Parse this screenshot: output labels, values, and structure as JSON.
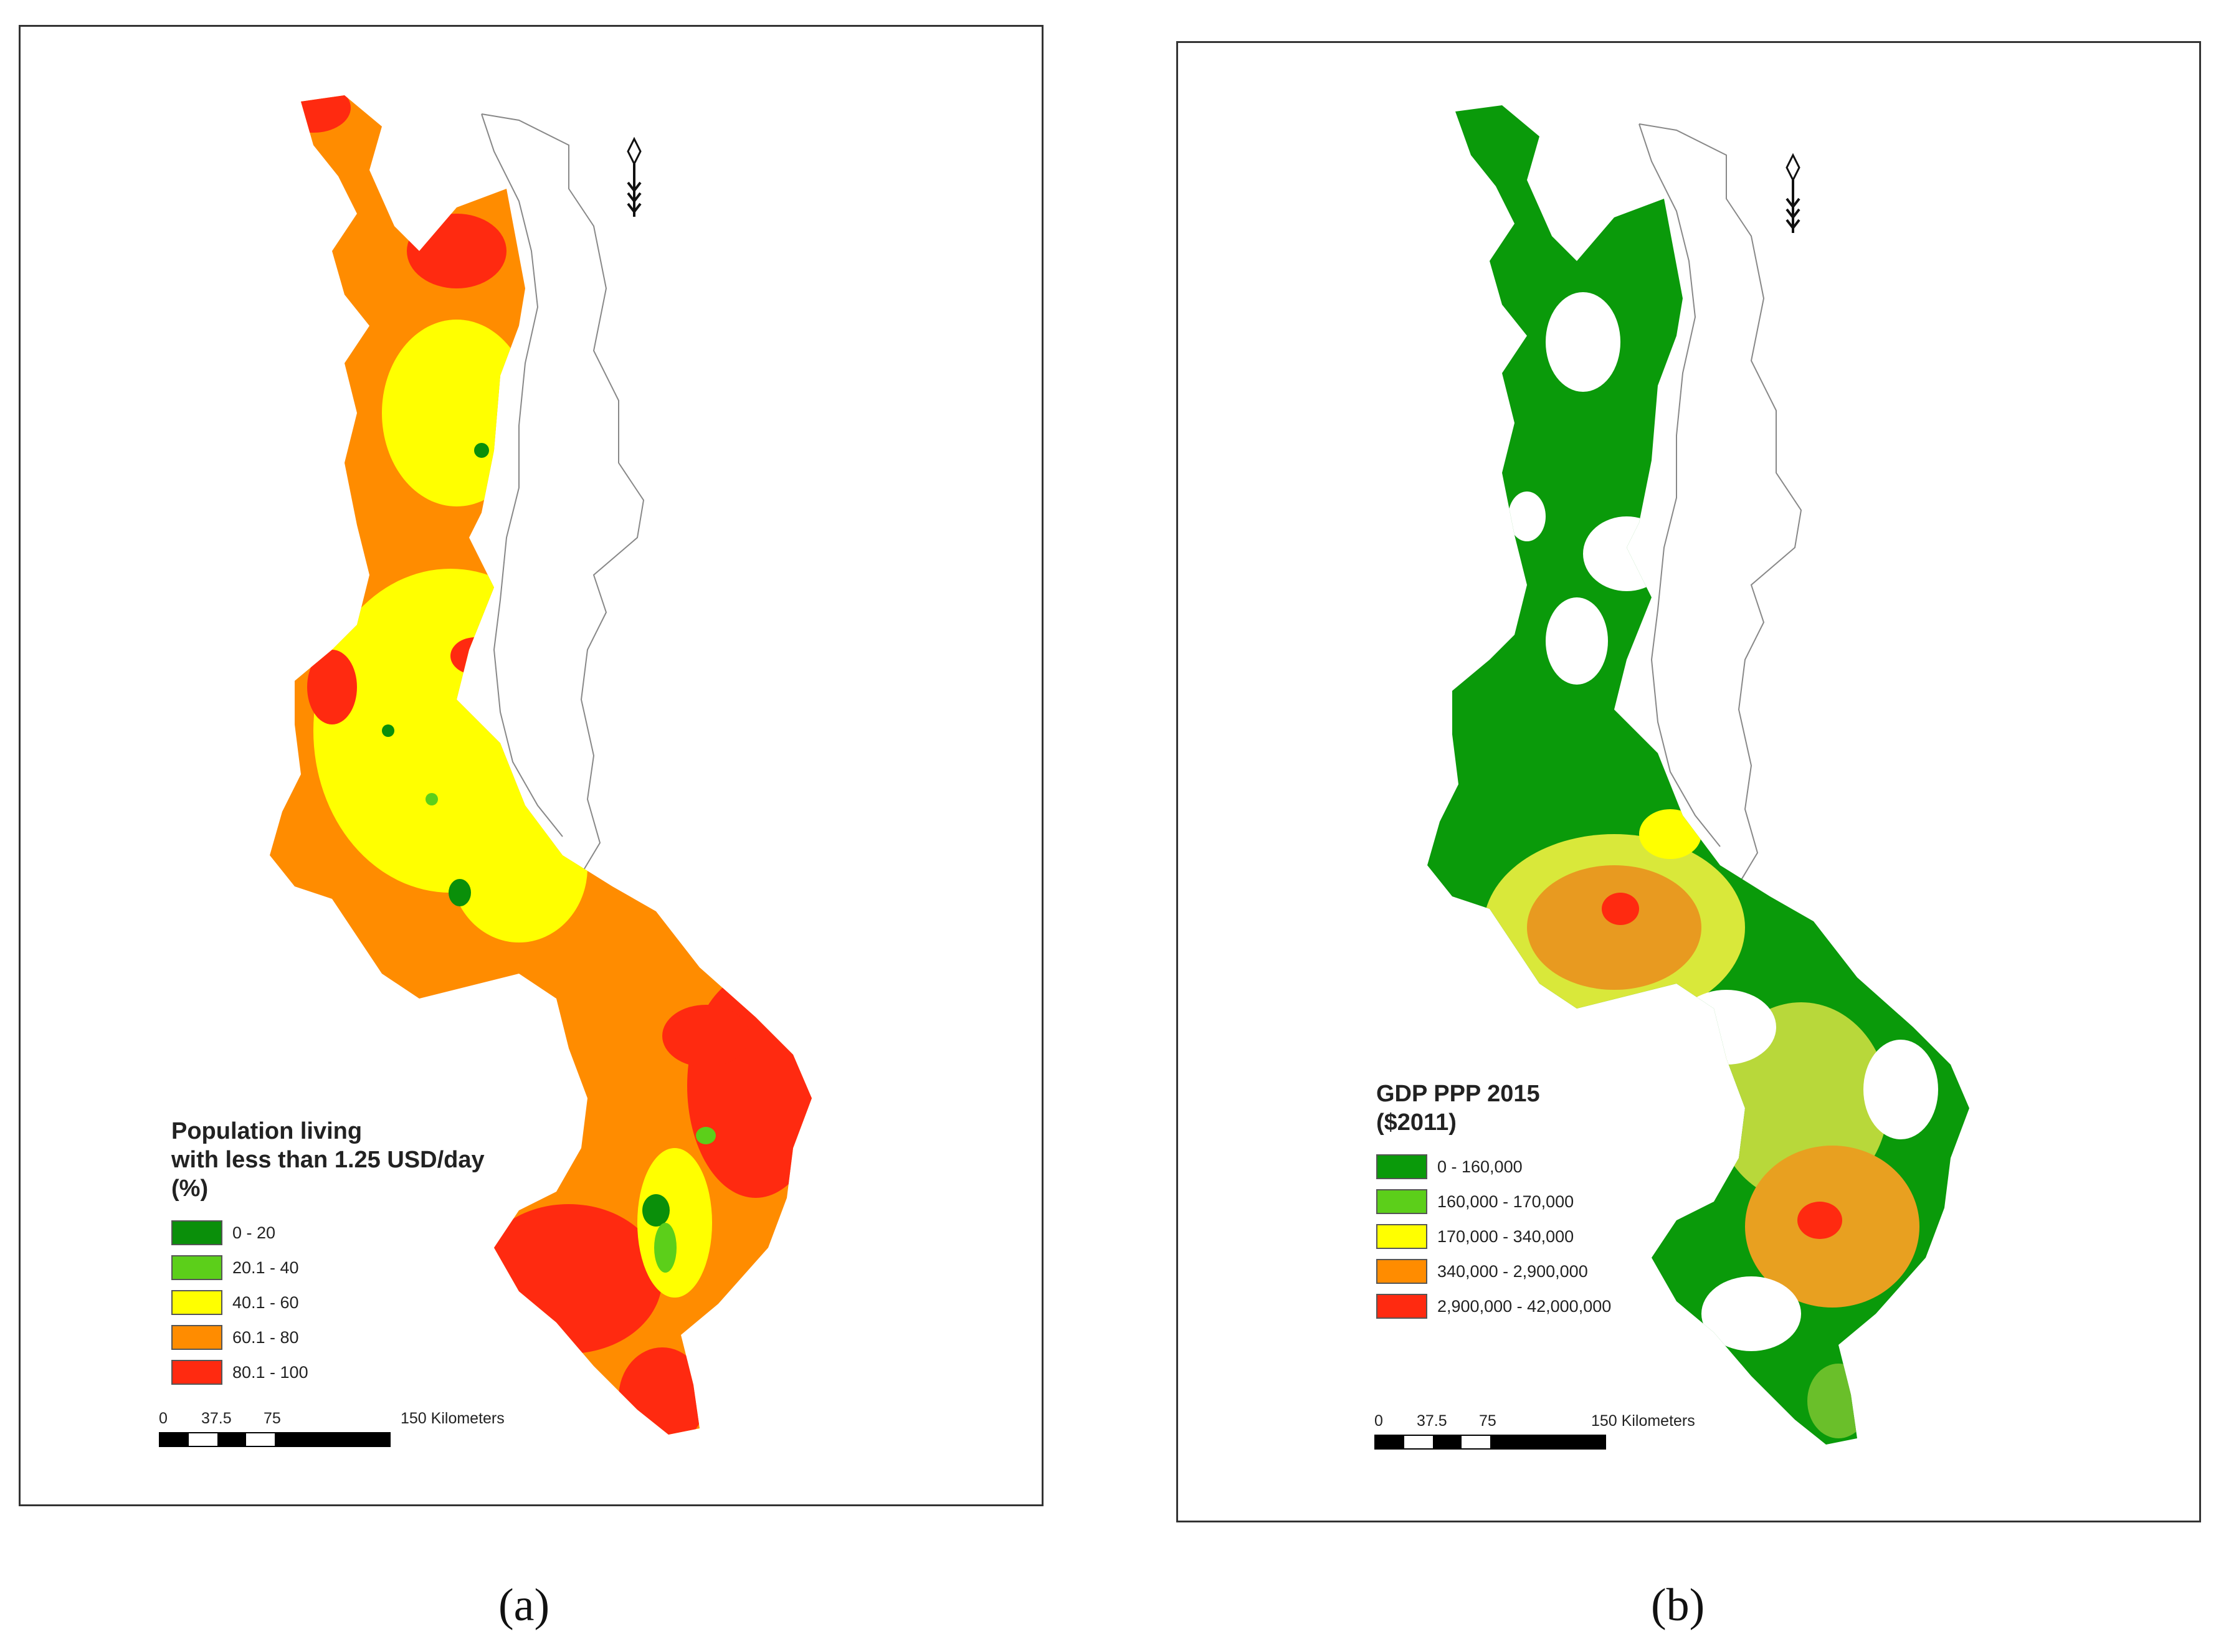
{
  "panels": [
    {
      "caption": "(a)",
      "legend": {
        "title": "Population living\nwith less than 1.25 USD/day\n(%)",
        "items": [
          {
            "label": "0 - 20",
            "color": "#0a8f0a"
          },
          {
            "label": "20.1 - 40",
            "color": "#5ccf1a"
          },
          {
            "label": "40.1 - 60",
            "color": "#ffff00"
          },
          {
            "label": "60.1 - 80",
            "color": "#ff8c00"
          },
          {
            "label": "80.1 - 100",
            "color": "#ff2a10"
          }
        ]
      },
      "scale": {
        "ticks": [
          "0",
          "37.5",
          "75",
          "150 Kilometers"
        ]
      }
    },
    {
      "caption": "(b)",
      "legend": {
        "title": "GDP PPP 2015\n($2011)",
        "items": [
          {
            "label": "0 - 160,000",
            "color": "#0a9a0a"
          },
          {
            "label": "160,000 - 170,000",
            "color": "#5ccf1a"
          },
          {
            "label": "170,000 - 340,000",
            "color": "#ffff00"
          },
          {
            "label": "340,000 - 2,900,000",
            "color": "#ff8c00"
          },
          {
            "label": "2,900,000 - 42,000,000",
            "color": "#ff2a10"
          }
        ]
      },
      "scale": {
        "ticks": [
          "0",
          "37.5",
          "75",
          "150 Kilometers"
        ]
      }
    }
  ]
}
